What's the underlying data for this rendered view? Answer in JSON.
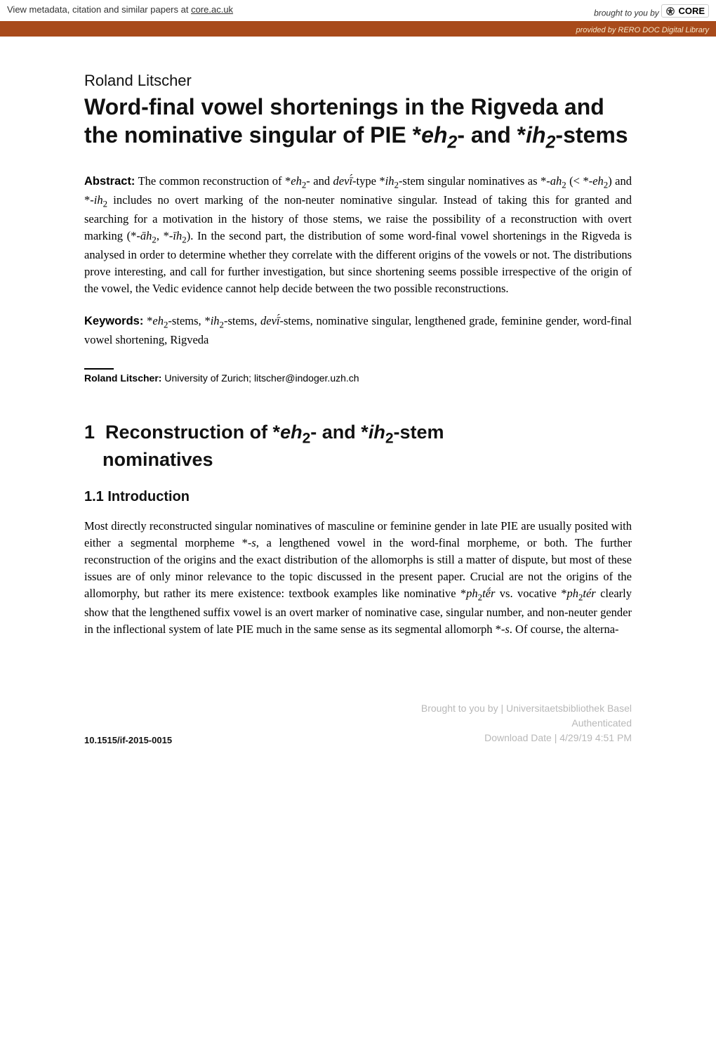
{
  "banner": {
    "left_prefix": "View metadata, citation and similar papers at ",
    "left_link_text": "core.ac.uk",
    "brought_by": "brought to you by",
    "core_label": "CORE",
    "provided_prefix": "provided by ",
    "provided_source": "RERO DOC Digital Library"
  },
  "author": "Roland Litscher",
  "title_parts": {
    "p1": "Word-final vowel shortenings in the Rigveda and the nominative singular of PIE *",
    "eh": "eh",
    "sub2a": "2",
    "mid": "- and *",
    "ih": "ih",
    "sub2b": "2",
    "end": "-stems"
  },
  "abstract": {
    "label": "Abstract:",
    "text_html": " The common reconstruction of *<i>eh</i><span class=\"sub2\">2</span>- and <i>devī́</i>-type *<i>ih</i><span class=\"sub2\">2</span>-stem singular nominatives as *-<i>ah</i><span class=\"sub2\">2</span> (&lt; *-<i>eh</i><span class=\"sub2\">2</span>) and *-<i>ih</i><span class=\"sub2\">2</span> includes no overt marking of the non-neuter nominative singular. Instead of taking this for granted and searching for a motivation in the history of those stems, we raise the possibility of a reconstruction with overt marking (*-<i>āh</i><span class=\"sub2\">2</span>, *-<i>īh</i><span class=\"sub2\">2</span>). In the second part, the distribution of some word-final vowel shortenings in the Rigveda is analysed in order to determine whether they correlate with the different origins of the vowels or not. The distributions prove interesting, and call for further investigation, but since shortening seems possible irrespective of the origin of the vowel, the Vedic evidence cannot help decide between the two possible reconstructions."
  },
  "keywords": {
    "label": "Keywords:",
    "text_html": " *<i>eh</i><span class=\"sub2\">2</span>-stems, *<i>ih</i><span class=\"sub2\">2</span>-stems, <i>devī́</i>-stems, nominative singular, lengthened grade, feminine gender, word-final vowel shortening, Rigveda"
  },
  "affiliation": {
    "name": "Roland Litscher:",
    "rest": " University of Zurich; litscher@indoger.uzh.ch"
  },
  "section1": {
    "num": "1",
    "line1_html": "Reconstruction of *<i>eh</i><span class=\"sub2\">2</span>- and *<i>ih</i><span class=\"sub2\">2</span>-stem",
    "line2": "nominatives"
  },
  "subsection": "1.1 Introduction",
  "body_html": "Most directly reconstructed singular nominatives of masculine or feminine gender in late PIE are usually posited with either a segmental morpheme *-<i>s</i>, a lengthened vowel in the word-final morpheme, or both. The further reconstruction of the origins and the exact distribution of the allomorphs is still a matter of dispute, but most of these issues are of only minor relevance to the topic discussed in the present paper. Crucial are not the origins of the allomorphy, but rather its mere existence: textbook examples like nominative *<i>ph</i><span class=\"sub2\">2</span><i>tḗr</i> vs. vocative *<i>ph</i><span class=\"sub2\">2</span><i>tér</i> clearly show that the lengthened suffix vowel is an overt marker of nominative case, singular number, and non-neuter gender in the inflectional system of late PIE much in the same sense as its segmental allomorph *-<i>s</i>. Of course, the alterna-",
  "footer": {
    "doi": "10.1515/if-2015-0015",
    "wm_line1": "Brought to you by | Universitaetsbibliothek Basel",
    "wm_line2": "Authenticated",
    "wm_line3": "Download Date | 4/29/19 4:51 PM"
  }
}
